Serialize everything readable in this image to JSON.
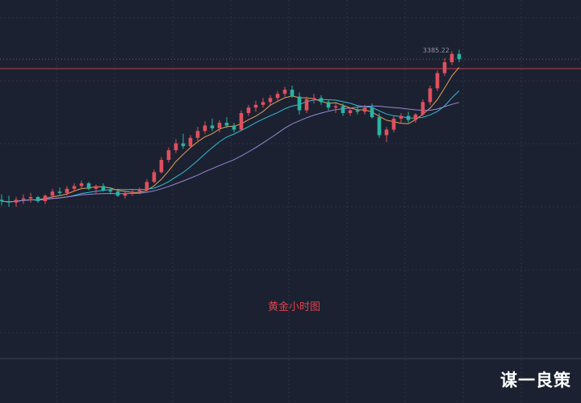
{
  "colors": {
    "background": "#1b2130",
    "grid": "#2b3344",
    "up": "#e0505e",
    "down": "#2bb3a3",
    "ma_fast": "#e6a15a",
    "ma_mid": "#33bcd6",
    "ma_slow": "#9a86d6",
    "hline": "#c43a4d",
    "dotline": "#2c7f73",
    "price_label": "#8f95a3"
  },
  "caption": "黄金小时图",
  "watermark": "谋一良策",
  "price_label": "3385.22",
  "chart_data": {
    "type": "candlestick",
    "title": "",
    "xlabel": "",
    "ylabel": "",
    "ylim": [
      3224,
      3400
    ],
    "grid": true,
    "last_price": 3385.22,
    "horizontal_line": 3378.3,
    "candles": [
      [
        3283,
        3287,
        3279,
        3282
      ],
      [
        3282,
        3286,
        3278,
        3281
      ],
      [
        3281,
        3285,
        3278,
        3283
      ],
      [
        3283,
        3287,
        3280,
        3284
      ],
      [
        3284,
        3288,
        3281,
        3285
      ],
      [
        3285,
        3286,
        3281,
        3282
      ],
      [
        3282,
        3287,
        3280,
        3286
      ],
      [
        3286,
        3291,
        3284,
        3289
      ],
      [
        3289,
        3292,
        3286,
        3288
      ],
      [
        3288,
        3293,
        3286,
        3291
      ],
      [
        3291,
        3295,
        3289,
        3293
      ],
      [
        3293,
        3297,
        3291,
        3295
      ],
      [
        3295,
        3296,
        3290,
        3291
      ],
      [
        3291,
        3294,
        3288,
        3293
      ],
      [
        3293,
        3295,
        3289,
        3290
      ],
      [
        3290,
        3292,
        3287,
        3289
      ],
      [
        3289,
        3291,
        3285,
        3286
      ],
      [
        3286,
        3289,
        3284,
        3288
      ],
      [
        3288,
        3291,
        3286,
        3289
      ],
      [
        3289,
        3292,
        3287,
        3290
      ],
      [
        3290,
        3298,
        3289,
        3296
      ],
      [
        3296,
        3305,
        3295,
        3303
      ],
      [
        3303,
        3314,
        3302,
        3312
      ],
      [
        3312,
        3321,
        3310,
        3319
      ],
      [
        3319,
        3327,
        3317,
        3324
      ],
      [
        3324,
        3331,
        3320,
        3322
      ],
      [
        3322,
        3330,
        3321,
        3328
      ],
      [
        3328,
        3336,
        3326,
        3333
      ],
      [
        3333,
        3340,
        3331,
        3337
      ],
      [
        3337,
        3342,
        3333,
        3335
      ],
      [
        3335,
        3341,
        3332,
        3339
      ],
      [
        3339,
        3343,
        3335,
        3337
      ],
      [
        3337,
        3339,
        3332,
        3334
      ],
      [
        3334,
        3348,
        3333,
        3346
      ],
      [
        3346,
        3352,
        3344,
        3350
      ],
      [
        3350,
        3355,
        3347,
        3352
      ],
      [
        3352,
        3357,
        3350,
        3354
      ],
      [
        3354,
        3359,
        3352,
        3357
      ],
      [
        3357,
        3362,
        3355,
        3360
      ],
      [
        3360,
        3365,
        3358,
        3363
      ],
      [
        3363,
        3366,
        3357,
        3358
      ],
      [
        3358,
        3361,
        3345,
        3348
      ],
      [
        3348,
        3358,
        3346,
        3356
      ],
      [
        3356,
        3360,
        3353,
        3357
      ],
      [
        3357,
        3359,
        3352,
        3354
      ],
      [
        3354,
        3356,
        3348,
        3350
      ],
      [
        3350,
        3353,
        3346,
        3351
      ],
      [
        3351,
        3353,
        3344,
        3346
      ],
      [
        3346,
        3350,
        3344,
        3348
      ],
      [
        3348,
        3351,
        3345,
        3347
      ],
      [
        3347,
        3352,
        3345,
        3350
      ],
      [
        3350,
        3353,
        3342,
        3343
      ],
      [
        3343,
        3346,
        3328,
        3330
      ],
      [
        3330,
        3336,
        3325,
        3334
      ],
      [
        3334,
        3344,
        3332,
        3342
      ],
      [
        3342,
        3346,
        3339,
        3344
      ],
      [
        3344,
        3347,
        3339,
        3341
      ],
      [
        3341,
        3346,
        3339,
        3345
      ],
      [
        3345,
        3356,
        3344,
        3354
      ],
      [
        3354,
        3366,
        3352,
        3364
      ],
      [
        3364,
        3377,
        3362,
        3375
      ],
      [
        3375,
        3386,
        3373,
        3383
      ],
      [
        3383,
        3391,
        3381,
        3389
      ],
      [
        3389,
        3392,
        3383,
        3385.22
      ]
    ]
  }
}
